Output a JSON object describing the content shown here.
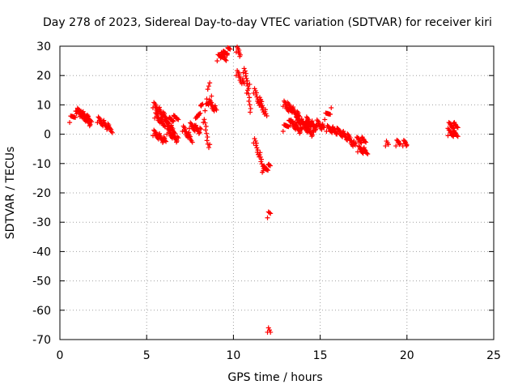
{
  "chart_data": {
    "type": "scatter",
    "title": "Day 278 of 2023, Sidereal Day-to-day VTEC variation (SDTVAR) for receiver kiri",
    "xlabel": "GPS time / hours",
    "ylabel": "SDTVAR / TECUs",
    "xlim": [
      0,
      25
    ],
    "ylim": [
      -70,
      30
    ],
    "xticks": [
      "0",
      "5",
      "10",
      "15",
      "20",
      "25"
    ],
    "yticks": [
      "30",
      "20",
      "10",
      "0",
      "-10",
      "-20",
      "-30",
      "-40",
      "-50",
      "-60",
      "-70"
    ],
    "grid": true,
    "marker": "+",
    "color": "#ff0000",
    "segments": [
      {
        "x0": 0.6,
        "x1": 1.0,
        "y0": 5,
        "y1": 7.5
      },
      {
        "x0": 1.0,
        "x1": 1.7,
        "y0": 8,
        "y1": 5
      },
      {
        "x0": 1.2,
        "x1": 1.8,
        "y0": 7,
        "y1": 3.5
      },
      {
        "x0": 2.2,
        "x1": 3.0,
        "y0": 5,
        "y1": 1.5
      },
      {
        "x0": 5.4,
        "x1": 6.2,
        "y0": 10,
        "y1": 5
      },
      {
        "x0": 5.5,
        "x1": 6.0,
        "y0": 6.5,
        "y1": 3.5
      },
      {
        "x0": 5.4,
        "x1": 6.1,
        "y0": 0.5,
        "y1": -2.5
      },
      {
        "x0": 6.0,
        "x1": 6.8,
        "y0": 4,
        "y1": 6
      },
      {
        "x0": 6.1,
        "x1": 6.6,
        "y0": 3.5,
        "y1": 1
      },
      {
        "x0": 6.2,
        "x1": 6.8,
        "y0": 1,
        "y1": -2
      },
      {
        "x0": 7.1,
        "x1": 7.6,
        "y0": 2,
        "y1": -2
      },
      {
        "x0": 7.5,
        "x1": 8.1,
        "y0": 3,
        "y1": 1
      },
      {
        "x0": 7.8,
        "x1": 8.2,
        "y0": 4,
        "y1": 10
      },
      {
        "x0": 8.3,
        "x1": 8.6,
        "y0": 5,
        "y1": -4.5
      },
      {
        "x0": 8.4,
        "x1": 8.7,
        "y0": 9,
        "y1": 12
      },
      {
        "x0": 8.5,
        "x1": 8.6,
        "y0": 13,
        "y1": 17
      },
      {
        "x0": 8.6,
        "x1": 9.0,
        "y0": 11,
        "y1": 8
      },
      {
        "x0": 9.1,
        "x1": 9.8,
        "y0": 26,
        "y1": 29
      },
      {
        "x0": 9.3,
        "x1": 9.6,
        "y0": 27,
        "y1": 26
      },
      {
        "x0": 10.2,
        "x1": 10.4,
        "y0": 29,
        "y1": 27
      },
      {
        "x0": 10.2,
        "x1": 10.6,
        "y0": 21,
        "y1": 17
      },
      {
        "x0": 10.6,
        "x1": 10.9,
        "y0": 22,
        "y1": 16
      },
      {
        "x0": 10.8,
        "x1": 11.0,
        "y0": 15,
        "y1": 8
      },
      {
        "x0": 11.2,
        "x1": 11.6,
        "y0": 15,
        "y1": 9
      },
      {
        "x0": 11.5,
        "x1": 11.9,
        "y0": 12,
        "y1": 6
      },
      {
        "x0": 11.2,
        "x1": 11.8,
        "y0": -2,
        "y1": -12.5
      },
      {
        "x0": 11.7,
        "x1": 12.1,
        "y0": -12,
        "y1": -11
      },
      {
        "x0": 12.0,
        "x1": 12.1,
        "y0": -27.5,
        "y1": -27.5
      },
      {
        "x0": 12.0,
        "x1": 12.1,
        "y0": -66.5,
        "y1": -68
      },
      {
        "x0": 12.9,
        "x1": 13.3,
        "y0": 10.5,
        "y1": 8
      },
      {
        "x0": 13.1,
        "x1": 13.8,
        "y0": 10,
        "y1": 6
      },
      {
        "x0": 12.9,
        "x1": 13.4,
        "y0": 2,
        "y1": 5
      },
      {
        "x0": 13.3,
        "x1": 13.9,
        "y0": 4,
        "y1": 1
      },
      {
        "x0": 13.6,
        "x1": 14.3,
        "y0": 5,
        "y1": 3
      },
      {
        "x0": 14.0,
        "x1": 14.6,
        "y0": 3,
        "y1": 0
      },
      {
        "x0": 14.2,
        "x1": 14.8,
        "y0": 5,
        "y1": 2
      },
      {
        "x0": 14.8,
        "x1": 15.2,
        "y0": 4,
        "y1": 2
      },
      {
        "x0": 15.3,
        "x1": 15.6,
        "y0": 6,
        "y1": 8
      },
      {
        "x0": 15.4,
        "x1": 16.0,
        "y0": 2,
        "y1": 1
      },
      {
        "x0": 16.0,
        "x1": 16.6,
        "y0": 1,
        "y1": -1
      },
      {
        "x0": 16.6,
        "x1": 17.0,
        "y0": -1,
        "y1": -4
      },
      {
        "x0": 17.1,
        "x1": 17.6,
        "y0": -2,
        "y1": -2
      },
      {
        "x0": 17.2,
        "x1": 17.7,
        "y0": -5,
        "y1": -6
      },
      {
        "x0": 18.8,
        "x1": 18.9,
        "y0": -3,
        "y1": -4
      },
      {
        "x0": 19.4,
        "x1": 19.6,
        "y0": -3,
        "y1": -3
      },
      {
        "x0": 19.8,
        "x1": 20.0,
        "y0": -3,
        "y1": -3.5
      },
      {
        "x0": 22.4,
        "x1": 22.9,
        "y0": 3,
        "y1": 3
      },
      {
        "x0": 22.4,
        "x1": 22.9,
        "y0": 0.5,
        "y1": 0
      }
    ]
  }
}
